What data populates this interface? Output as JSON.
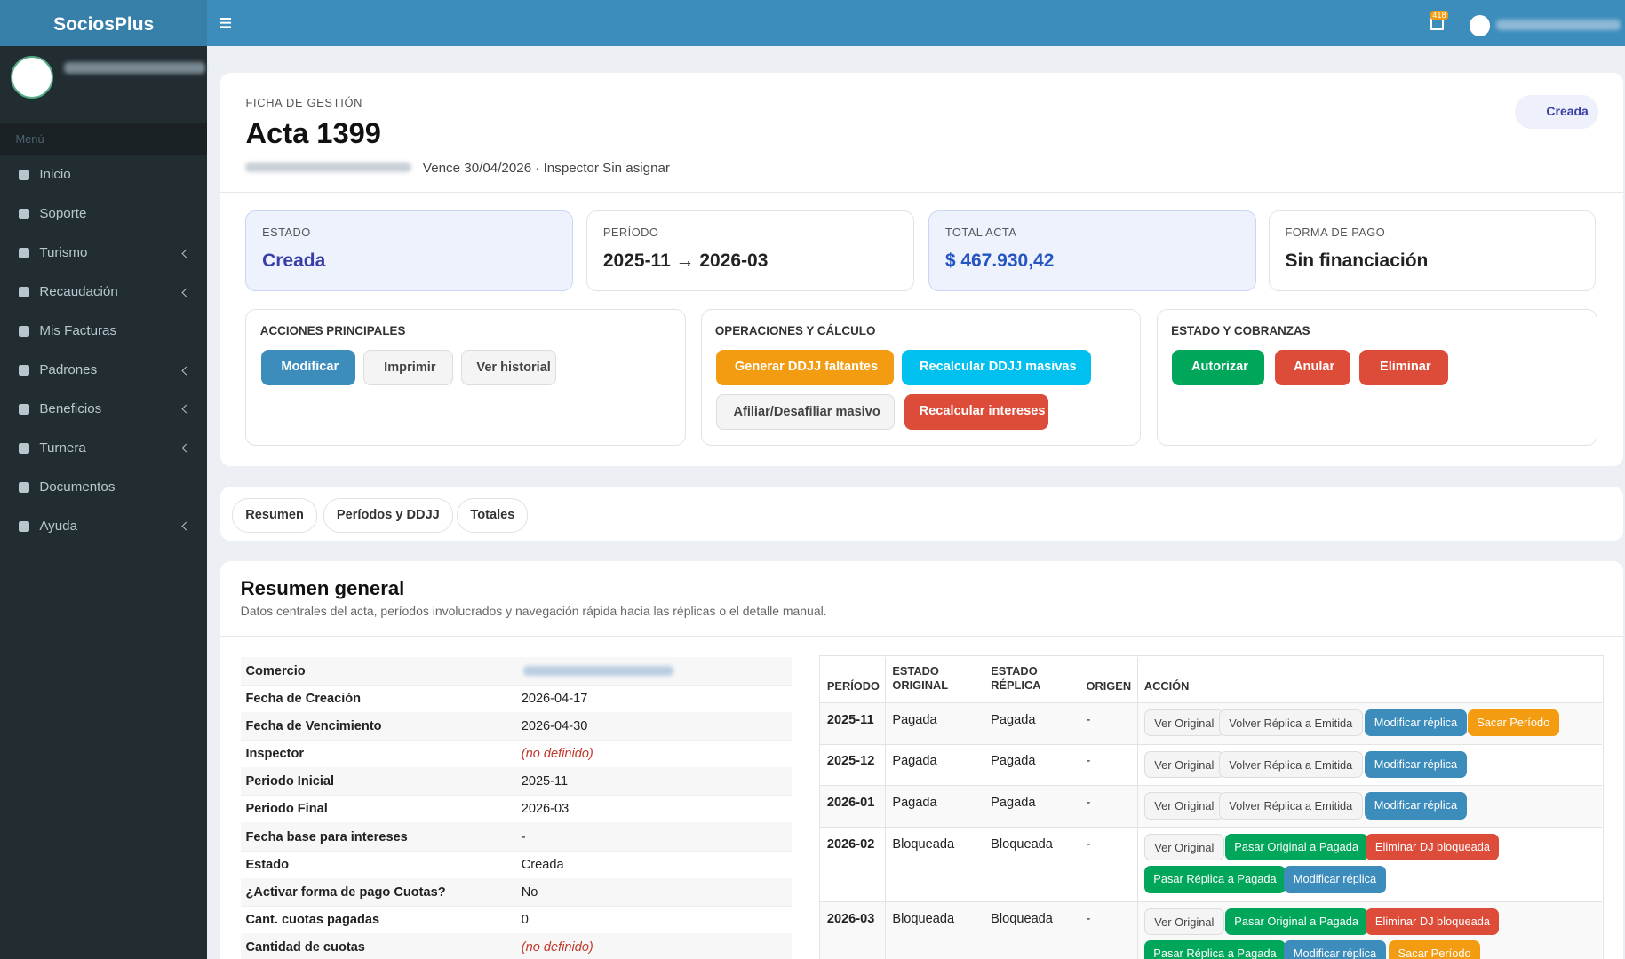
{
  "sidebar": {
    "brand": "SociosPlus",
    "menu_label": "Menú",
    "items": [
      "Inicio",
      "Soporte",
      "Turismo",
      "Recaudación",
      "Mis Facturas",
      "Padrones",
      "Beneficios",
      "Turnera",
      "Documentos",
      "Ayuda"
    ]
  },
  "topbar": {
    "notifications": "418"
  },
  "header": {
    "eyebrow": "FICHA DE GESTIÓN",
    "title": "Acta 1399",
    "meta": "Vence 30/04/2026 · Inspector Sin asignar",
    "badge": "Creada"
  },
  "stats": [
    {
      "label": "ESTADO",
      "value": "Creada"
    },
    {
      "label": "PERÍODO",
      "value": "2025-11 → 2026-03"
    },
    {
      "label": "TOTAL ACTA",
      "value": "$ 467.930,42"
    },
    {
      "label": "FORMA DE PAGO",
      "value": "Sin financiación"
    }
  ],
  "action_groups": [
    {
      "title": "ACCIONES PRINCIPALES",
      "buttons": [
        "Modificar",
        "Imprimir",
        "Ver historial"
      ]
    },
    {
      "title": "OPERACIONES Y CÁLCULO",
      "buttons": [
        "Generar DDJJ faltantes",
        "Recalcular DDJJ masivas",
        "Afiliar/Desafiliar masivo",
        "Recalcular intereses"
      ]
    },
    {
      "title": "ESTADO Y COBRANZAS",
      "buttons": [
        "Autorizar",
        "Anular",
        "Eliminar"
      ]
    }
  ],
  "tabs": [
    "Resumen",
    "Períodos y DDJJ",
    "Totales"
  ],
  "summary": {
    "title": "Resumen general",
    "subtitle": "Datos centrales del acta, períodos involucrados y navegación rápida hacia las réplicas o el detalle manual.",
    "rows": [
      {
        "label": "Comercio"
      },
      {
        "label": "Fecha de Creación",
        "value": "2026-04-17"
      },
      {
        "label": "Fecha de Vencimiento",
        "value": "2026-04-30"
      },
      {
        "label": "Inspector",
        "value": "(no definido)"
      },
      {
        "label": "Periodo Inicial",
        "value": "2025-11"
      },
      {
        "label": "Periodo Final",
        "value": "2026-03"
      },
      {
        "label": "Fecha base para intereses",
        "value": "-"
      },
      {
        "label": "Estado",
        "value": "Creada"
      },
      {
        "label": "¿Activar forma de pago Cuotas?",
        "value": "No"
      },
      {
        "label": "Cant. cuotas pagadas",
        "value": "0"
      },
      {
        "label": "Cantidad de cuotas",
        "value": "(no definido)"
      }
    ]
  },
  "periods_table": {
    "headers": [
      "PERÍODO",
      "ESTADO ORIGINAL",
      "ESTADO RÉPLICA",
      "ORIGEN",
      "ACCIÓN"
    ],
    "rows": [
      {
        "cells": [
          "2025-11",
          "Pagada",
          "Pagada",
          "-"
        ],
        "actions": [
          "Ver Original",
          "Volver Réplica a Emitida",
          "Modificar réplica",
          "Sacar Período"
        ]
      },
      {
        "cells": [
          "2025-12",
          "Pagada",
          "Pagada",
          "-"
        ],
        "actions": [
          "Ver Original",
          "Volver Réplica a Emitida",
          "Modificar réplica"
        ]
      },
      {
        "cells": [
          "2026-01",
          "Pagada",
          "Pagada",
          "-"
        ],
        "actions": [
          "Ver Original",
          "Volver Réplica a Emitida",
          "Modificar réplica"
        ]
      },
      {
        "cells": [
          "2026-02",
          "Bloqueada",
          "Bloqueada",
          "-"
        ],
        "actions": [
          "Ver Original",
          "Pasar Original a Pagada",
          "Eliminar DJ bloqueada",
          "Pasar Réplica a Pagada",
          "Modificar réplica"
        ]
      },
      {
        "cells": [
          "2026-03",
          "Bloqueada",
          "Bloqueada",
          "-"
        ],
        "actions": [
          "Ver Original",
          "Pasar Original a Pagada",
          "Eliminar DJ bloqueada",
          "Pasar Réplica a Pagada",
          "Modificar réplica",
          "Sacar Período"
        ]
      }
    ]
  }
}
